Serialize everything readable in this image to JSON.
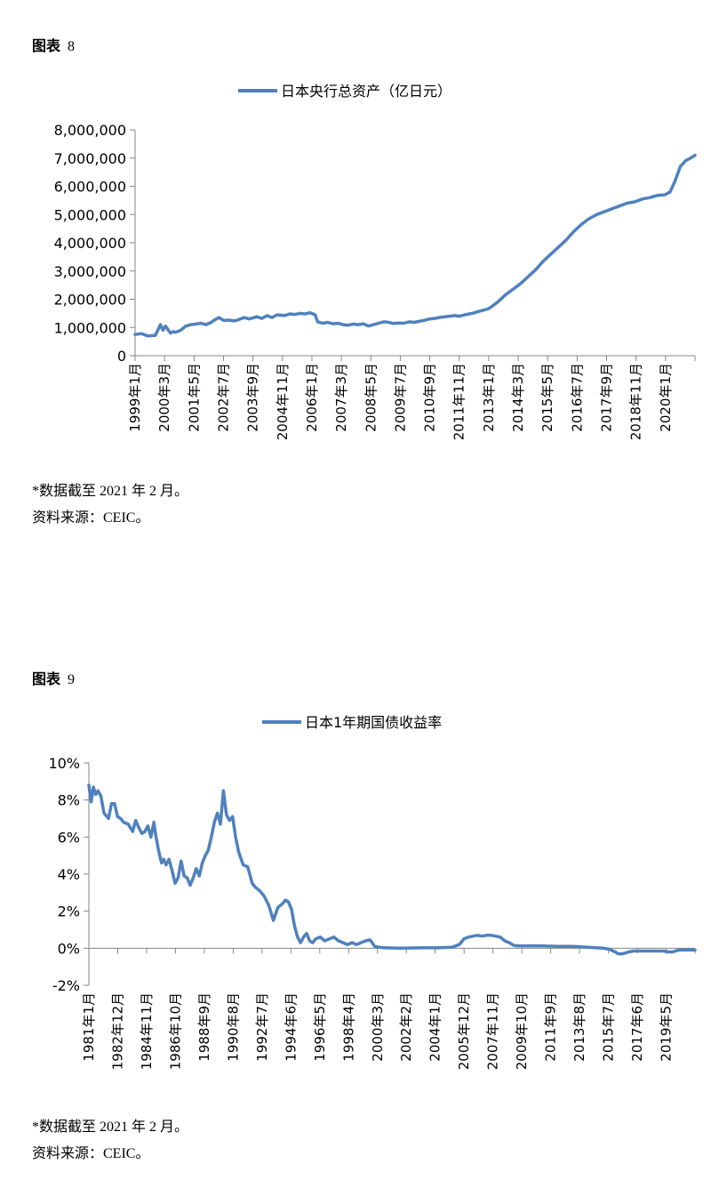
{
  "figures": [
    {
      "title": "图表",
      "number": "8",
      "note": "*数据截至 2021 年 2 月。",
      "source": "资料来源：CEIC。"
    },
    {
      "title": "图表",
      "number": "9",
      "note": "*数据截至 2021 年 2 月。",
      "source": "资料来源：CEIC。"
    }
  ],
  "chart_data": [
    {
      "type": "line",
      "series": [
        {
          "name": "日本央行总资产（亿日元）",
          "color": "#4f81bd"
        }
      ],
      "x_range": [
        1999.0,
        2021.08
      ],
      "ylim": [
        0,
        8000000
      ],
      "yticks": [
        0,
        1000000,
        2000000,
        3000000,
        4000000,
        5000000,
        6000000,
        7000000,
        8000000
      ],
      "ytick_labels": [
        "0",
        "1,000,000",
        "2,000,000",
        "3,000,000",
        "4,000,000",
        "5,000,000",
        "6,000,000",
        "7,000,000",
        "8,000,000"
      ],
      "xtick_labels": [
        "1999年1月",
        "2000年3月",
        "2001年5月",
        "2002年7月",
        "2003年9月",
        "2004年11月",
        "2006年1月",
        "2007年3月",
        "2008年5月",
        "2009年7月",
        "2010年9月",
        "2011年11月",
        "2013年1月",
        "2014年3月",
        "2015年5月",
        "2016年7月",
        "2017年9月",
        "2018年11月",
        "2020年1月"
      ],
      "x": [
        1999.0,
        1999.25,
        1999.5,
        1999.8,
        2000.0,
        2000.1,
        2000.2,
        2000.4,
        2000.5,
        2000.6,
        2000.8,
        2001.0,
        2001.2,
        2001.4,
        2001.6,
        2001.8,
        2002.0,
        2002.1,
        2002.3,
        2002.5,
        2002.7,
        2002.9,
        2003.0,
        2003.3,
        2003.5,
        2003.8,
        2004.0,
        2004.2,
        2004.4,
        2004.6,
        2004.9,
        2005.1,
        2005.3,
        2005.5,
        2005.7,
        2005.9,
        2006.1,
        2006.2,
        2006.4,
        2006.6,
        2006.8,
        2007.0,
        2007.2,
        2007.4,
        2007.6,
        2007.8,
        2008.0,
        2008.2,
        2008.4,
        2008.6,
        2008.8,
        2009.0,
        2009.2,
        2009.4,
        2009.6,
        2009.8,
        2010.0,
        2010.2,
        2010.4,
        2010.6,
        2010.8,
        2011.0,
        2011.2,
        2011.4,
        2011.6,
        2011.8,
        2012.0,
        2012.3,
        2012.6,
        2012.9,
        2013.0,
        2013.3,
        2013.6,
        2013.9,
        2014.2,
        2014.5,
        2014.8,
        2015.1,
        2015.4,
        2015.7,
        2016.0,
        2016.3,
        2016.6,
        2016.9,
        2017.2,
        2017.5,
        2017.8,
        2018.1,
        2018.4,
        2018.7,
        2019.0,
        2019.3,
        2019.6,
        2019.9,
        2020.1,
        2020.3,
        2020.5,
        2020.7,
        2020.9,
        2021.08
      ],
      "values": [
        750000,
        780000,
        700000,
        720000,
        1100000,
        900000,
        1050000,
        800000,
        850000,
        830000,
        900000,
        1050000,
        1100000,
        1120000,
        1150000,
        1100000,
        1180000,
        1250000,
        1350000,
        1250000,
        1260000,
        1230000,
        1250000,
        1350000,
        1300000,
        1380000,
        1320000,
        1420000,
        1350000,
        1450000,
        1420000,
        1480000,
        1460000,
        1500000,
        1480000,
        1520000,
        1450000,
        1200000,
        1150000,
        1180000,
        1130000,
        1150000,
        1100000,
        1080000,
        1120000,
        1100000,
        1130000,
        1050000,
        1100000,
        1150000,
        1200000,
        1180000,
        1140000,
        1160000,
        1150000,
        1200000,
        1180000,
        1220000,
        1250000,
        1300000,
        1320000,
        1350000,
        1380000,
        1400000,
        1420000,
        1400000,
        1450000,
        1500000,
        1580000,
        1650000,
        1700000,
        1900000,
        2150000,
        2350000,
        2550000,
        2800000,
        3050000,
        3350000,
        3600000,
        3850000,
        4100000,
        4400000,
        4650000,
        4850000,
        5000000,
        5100000,
        5200000,
        5300000,
        5400000,
        5450000,
        5550000,
        5600000,
        5680000,
        5700000,
        5800000,
        6200000,
        6700000,
        6900000,
        7000000,
        7100000
      ]
    },
    {
      "type": "line",
      "series": [
        {
          "name": "日本1年期国债收益率",
          "color": "#4f81bd"
        }
      ],
      "x_range": [
        1981.0,
        2021.08
      ],
      "ylim": [
        -2,
        10
      ],
      "yticks": [
        -2,
        0,
        2,
        4,
        6,
        8,
        10
      ],
      "ytick_labels": [
        "-2%",
        "0%",
        "2%",
        "4%",
        "6%",
        "8%",
        "10%"
      ],
      "xtick_labels": [
        "1981年1月",
        "1982年12月",
        "1984年11月",
        "1986年10月",
        "1988年9月",
        "1990年8月",
        "1992年7月",
        "1994年6月",
        "1996年5月",
        "1998年4月",
        "2000年3月",
        "2002年2月",
        "2004年1月",
        "2005年12月",
        "2007年11月",
        "2009年10月",
        "2011年9月",
        "2013年8月",
        "2015年7月",
        "2017年6月",
        "2019年5月"
      ],
      "x": [
        1981.0,
        1981.15,
        1981.3,
        1981.45,
        1981.6,
        1981.8,
        1982.0,
        1982.3,
        1982.5,
        1982.7,
        1982.9,
        1983.1,
        1983.3,
        1983.6,
        1983.9,
        1984.1,
        1984.3,
        1984.5,
        1984.7,
        1984.9,
        1985.1,
        1985.3,
        1985.4,
        1985.6,
        1985.8,
        1985.95,
        1986.1,
        1986.3,
        1986.5,
        1986.7,
        1986.9,
        1987.1,
        1987.3,
        1987.5,
        1987.7,
        1987.9,
        1988.1,
        1988.3,
        1988.5,
        1988.7,
        1988.9,
        1989.1,
        1989.3,
        1989.5,
        1989.7,
        1989.9,
        1990.1,
        1990.3,
        1990.5,
        1990.7,
        1990.9,
        1991.2,
        1991.5,
        1991.8,
        1992.0,
        1992.3,
        1992.6,
        1992.9,
        1993.2,
        1993.5,
        1993.8,
        1994.0,
        1994.2,
        1994.4,
        1994.6,
        1994.8,
        1995.0,
        1995.2,
        1995.4,
        1995.6,
        1995.8,
        1996.0,
        1996.3,
        1996.6,
        1996.9,
        1997.2,
        1997.5,
        1997.8,
        1998.1,
        1998.4,
        1998.7,
        1999.0,
        1999.3,
        1999.6,
        1999.9,
        2000.2,
        2000.5,
        2000.8,
        2001.1,
        2001.5,
        2002.0,
        2003.0,
        2004.0,
        2005.0,
        2005.5,
        2005.8,
        2006.1,
        2006.4,
        2006.7,
        2007.0,
        2007.3,
        2007.6,
        2007.9,
        2008.2,
        2008.5,
        2008.8,
        2009.1,
        2009.5,
        2010.0,
        2011.0,
        2012.0,
        2013.0,
        2014.0,
        2014.6,
        2015.0,
        2015.4,
        2015.8,
        2016.0,
        2016.3,
        2016.7,
        2017.0,
        2017.5,
        2018.0,
        2018.5,
        2019.0,
        2019.3,
        2019.6,
        2020.0,
        2020.5,
        2021.08
      ],
      "values": [
        8.8,
        7.9,
        8.7,
        8.3,
        8.5,
        8.2,
        7.3,
        7.0,
        7.8,
        7.8,
        7.1,
        7.0,
        6.8,
        6.7,
        6.3,
        6.9,
        6.5,
        6.2,
        6.3,
        6.6,
        6.0,
        6.8,
        6.2,
        5.3,
        4.6,
        4.8,
        4.5,
        4.8,
        4.2,
        3.5,
        3.8,
        4.7,
        3.9,
        3.8,
        3.4,
        3.8,
        4.3,
        3.9,
        4.6,
        5.0,
        5.3,
        6.0,
        6.8,
        7.3,
        6.7,
        8.5,
        7.2,
        6.9,
        7.1,
        6.0,
        5.2,
        4.5,
        4.4,
        3.5,
        3.3,
        3.1,
        2.8,
        2.3,
        1.5,
        2.2,
        2.4,
        2.6,
        2.5,
        2.1,
        1.2,
        0.6,
        0.3,
        0.6,
        0.8,
        0.4,
        0.3,
        0.5,
        0.6,
        0.4,
        0.5,
        0.6,
        0.4,
        0.3,
        0.2,
        0.3,
        0.2,
        0.3,
        0.4,
        0.45,
        0.1,
        0.05,
        0.02,
        0.02,
        0.01,
        0.0,
        0.01,
        0.02,
        0.02,
        0.05,
        0.2,
        0.5,
        0.6,
        0.65,
        0.7,
        0.65,
        0.7,
        0.7,
        0.65,
        0.6,
        0.4,
        0.3,
        0.15,
        0.12,
        0.12,
        0.12,
        0.1,
        0.1,
        0.05,
        0.02,
        0.0,
        -0.05,
        -0.2,
        -0.3,
        -0.3,
        -0.2,
        -0.15,
        -0.15,
        -0.15,
        -0.15,
        -0.15,
        -0.2,
        -0.2,
        -0.1,
        -0.1,
        -0.1
      ]
    }
  ]
}
